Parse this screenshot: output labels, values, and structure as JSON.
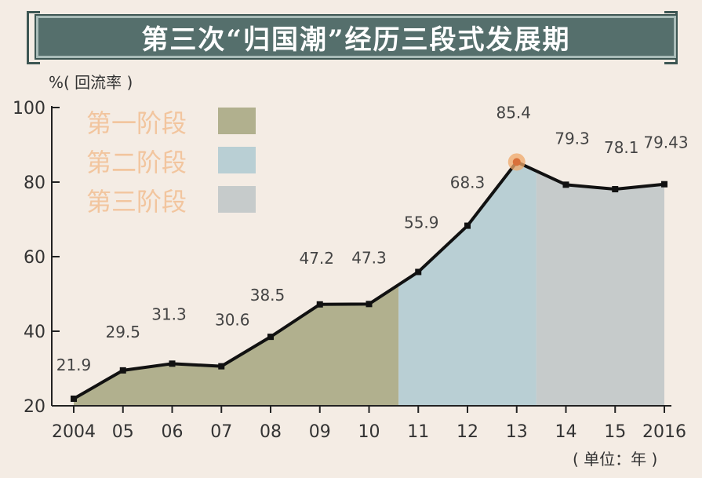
{
  "title": "第三次“归国潮”经历三段式发展期",
  "colors": {
    "stage1": "#b1b08e",
    "stage2": "#b9cfd4",
    "stage3": "#c6cbcb",
    "line": "#111111",
    "peak": "#f0a86a",
    "legend_text": "#f2c59e"
  },
  "chart_data": {
    "type": "line",
    "title": "第三次“归国潮”经历三段式发展期",
    "ylabel": "%( 回流率 )",
    "xlabel": "( 单位：年 )",
    "ylim": [
      20,
      100
    ],
    "yticks": [
      20,
      40,
      60,
      80,
      100
    ],
    "categories": [
      "2004",
      "05",
      "06",
      "07",
      "08",
      "09",
      "10",
      "11",
      "12",
      "13",
      "14",
      "15",
      "2016"
    ],
    "values": [
      21.9,
      29.5,
      31.3,
      30.6,
      38.5,
      47.2,
      47.3,
      55.9,
      68.3,
      85.4,
      79.3,
      78.1,
      79.43
    ],
    "data_labels": [
      "21.9",
      "29.5",
      "31.3",
      "30.6",
      "38.5",
      "47.2",
      "47.3",
      "55.9",
      "68.3",
      "85.4",
      "79.3",
      "78.1",
      "79.43"
    ],
    "highlight_index": 9,
    "stages": [
      {
        "name": "第一阶段",
        "from": 0,
        "to": 6.6
      },
      {
        "name": "第二阶段",
        "from": 6.6,
        "to": 9.4
      },
      {
        "name": "第三阶段",
        "from": 9.4,
        "to": 12
      }
    ],
    "grid": false,
    "legend": "top-left"
  }
}
